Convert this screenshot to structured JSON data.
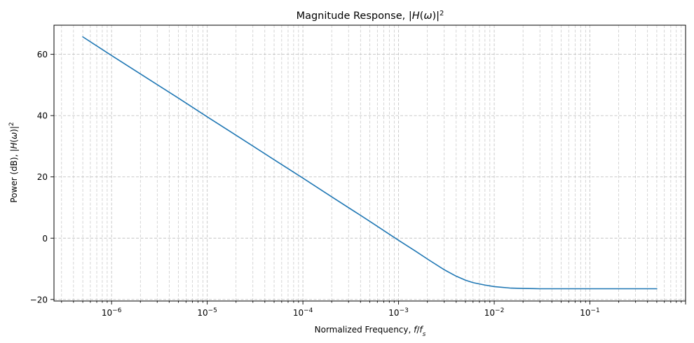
{
  "chart_data": {
    "type": "line",
    "title": "Magnitude Response, |H(ω)|²",
    "xlabel": "Normalized Frequency, f/fs",
    "ylabel": "Power (dB), |H(ω)|²",
    "x_scale": "log",
    "xlim": [
      2.5e-07,
      1.0
    ],
    "ylim": [
      -20.5,
      69.5
    ],
    "grid": true,
    "grid_style": "dashed",
    "x_ticks": [
      1e-06,
      1e-05,
      0.0001,
      0.001,
      0.01,
      0.1
    ],
    "y_ticks": [
      -20,
      0,
      20,
      40,
      60
    ],
    "y_tick_labels": [
      "−20",
      "0",
      "20",
      "40",
      "60"
    ],
    "line_color": "#1f77b4",
    "series": [
      {
        "x": [
          5e-07,
          1e-06,
          2e-06,
          5e-06,
          1e-05,
          2e-05,
          5e-05,
          0.0001,
          0.0002,
          0.0005,
          0.001,
          0.0015,
          0.002,
          0.003,
          0.004,
          0.005,
          0.006,
          0.008,
          0.01,
          0.015,
          0.02,
          0.03,
          0.05,
          0.1,
          0.2,
          0.5
        ],
        "y": [
          65.7,
          59.6,
          53.6,
          45.7,
          39.6,
          33.6,
          25.6,
          19.6,
          13.5,
          5.5,
          -0.7,
          -4.2,
          -6.8,
          -10.3,
          -12.4,
          -13.7,
          -14.5,
          -15.3,
          -15.8,
          -16.3,
          -16.4,
          -16.5,
          -16.5,
          -16.5,
          -16.5,
          -16.5
        ]
      }
    ]
  }
}
